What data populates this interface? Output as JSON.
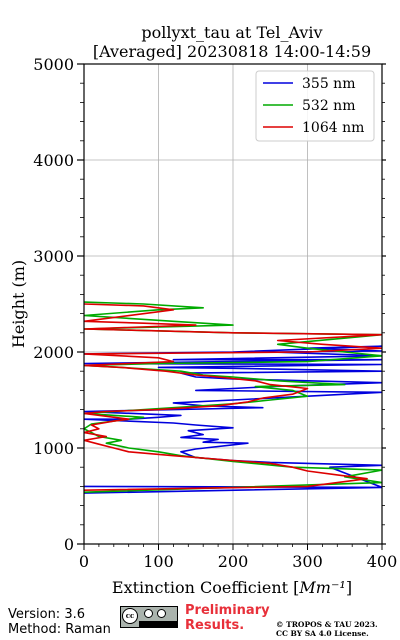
{
  "chart_data": {
    "type": "line",
    "title": "pollyxt_tau at Tel_Aviv",
    "subtitle": "[Averaged] 20230818 14:00-14:59",
    "xlabel": "Extinction Coefficient [Mm⁻¹]",
    "ylabel": "Height (m)",
    "xlim": [
      0,
      400
    ],
    "ylim": [
      0,
      5000
    ],
    "x_ticks": [
      "0",
      "100",
      "200",
      "300",
      "400"
    ],
    "y_ticks": [
      "0",
      "1000",
      "2000",
      "3000",
      "4000",
      "5000"
    ],
    "grid": true,
    "legend_position": "top-right",
    "series": [
      {
        "name": "355 nm",
        "color": "#0000dd",
        "points": [
          [
            0,
            530
          ],
          [
            400,
            590
          ],
          [
            0,
            600
          ],
          [
            400,
            590
          ],
          [
            330,
            800
          ],
          [
            400,
            820
          ],
          [
            250,
            850
          ],
          [
            200,
            870
          ],
          [
            150,
            900
          ],
          [
            130,
            960
          ],
          [
            150,
            990
          ],
          [
            220,
            1050
          ],
          [
            160,
            1060
          ],
          [
            180,
            1090
          ],
          [
            130,
            1110
          ],
          [
            160,
            1140
          ],
          [
            140,
            1180
          ],
          [
            200,
            1210
          ],
          [
            150,
            1240
          ],
          [
            120,
            1260
          ],
          [
            0,
            1300
          ],
          [
            60,
            1300
          ],
          [
            100,
            1320
          ],
          [
            130,
            1340
          ],
          [
            0,
            1380
          ],
          [
            240,
            1420
          ],
          [
            160,
            1440
          ],
          [
            120,
            1470
          ],
          [
            200,
            1500
          ],
          [
            300,
            1540
          ],
          [
            400,
            1580
          ],
          [
            150,
            1600
          ],
          [
            250,
            1640
          ],
          [
            400,
            1680
          ],
          [
            300,
            1700
          ],
          [
            200,
            1720
          ],
          [
            150,
            1740
          ],
          [
            130,
            1780
          ],
          [
            400,
            1800
          ],
          [
            200,
            1830
          ],
          [
            100,
            1840
          ],
          [
            400,
            1870
          ],
          [
            0,
            1880
          ],
          [
            200,
            1900
          ],
          [
            400,
            1920
          ],
          [
            120,
            1920
          ],
          [
            400,
            1960
          ],
          [
            250,
            2000
          ],
          [
            400,
            2010
          ],
          [
            300,
            2040
          ],
          [
            400,
            2060
          ],
          [
            200,
            2000
          ],
          [
            0,
            1980
          ]
        ]
      },
      {
        "name": "532 nm",
        "color": "#00aa00",
        "points": [
          [
            0,
            540
          ],
          [
            400,
            640
          ],
          [
            350,
            700
          ],
          [
            400,
            770
          ],
          [
            280,
            800
          ],
          [
            200,
            860
          ],
          [
            130,
            920
          ],
          [
            100,
            960
          ],
          [
            60,
            1000
          ],
          [
            30,
            1050
          ],
          [
            50,
            1080
          ],
          [
            20,
            1120
          ],
          [
            10,
            1160
          ],
          [
            0,
            1200
          ],
          [
            10,
            1250
          ],
          [
            40,
            1280
          ],
          [
            80,
            1320
          ],
          [
            0,
            1360
          ],
          [
            120,
            1420
          ],
          [
            200,
            1460
          ],
          [
            250,
            1500
          ],
          [
            300,
            1540
          ],
          [
            280,
            1600
          ],
          [
            230,
            1640
          ],
          [
            350,
            1660
          ],
          [
            260,
            1700
          ],
          [
            200,
            1740
          ],
          [
            160,
            1760
          ],
          [
            130,
            1800
          ],
          [
            50,
            1840
          ],
          [
            0,
            1860
          ],
          [
            100,
            1880
          ],
          [
            300,
            1900
          ],
          [
            400,
            1960
          ],
          [
            350,
            2000
          ],
          [
            300,
            2040
          ],
          [
            260,
            2080
          ],
          [
            400,
            2180
          ],
          [
            200,
            2200
          ],
          [
            0,
            2240
          ],
          [
            200,
            2280
          ],
          [
            120,
            2320
          ],
          [
            0,
            2380
          ],
          [
            100,
            2440
          ],
          [
            160,
            2460
          ],
          [
            80,
            2500
          ],
          [
            0,
            2520
          ]
        ]
      },
      {
        "name": "1064 nm",
        "color": "#dd0000",
        "points": [
          [
            0,
            560
          ],
          [
            300,
            600
          ],
          [
            380,
            680
          ],
          [
            340,
            720
          ],
          [
            300,
            760
          ],
          [
            280,
            800
          ],
          [
            250,
            840
          ],
          [
            200,
            870
          ],
          [
            120,
            920
          ],
          [
            60,
            960
          ],
          [
            40,
            1000
          ],
          [
            20,
            1040
          ],
          [
            0,
            1080
          ],
          [
            30,
            1120
          ],
          [
            0,
            1160
          ],
          [
            20,
            1200
          ],
          [
            10,
            1240
          ],
          [
            40,
            1280
          ],
          [
            60,
            1300
          ],
          [
            0,
            1360
          ],
          [
            30,
            1380
          ],
          [
            100,
            1400
          ],
          [
            180,
            1440
          ],
          [
            220,
            1480
          ],
          [
            240,
            1520
          ],
          [
            280,
            1560
          ],
          [
            300,
            1620
          ],
          [
            250,
            1660
          ],
          [
            230,
            1700
          ],
          [
            180,
            1740
          ],
          [
            150,
            1760
          ],
          [
            110,
            1800
          ],
          [
            50,
            1840
          ],
          [
            0,
            1860
          ],
          [
            60,
            1880
          ],
          [
            120,
            1900
          ],
          [
            100,
            1940
          ],
          [
            0,
            1980
          ],
          [
            300,
            2000
          ],
          [
            400,
            2040
          ],
          [
            320,
            2080
          ],
          [
            260,
            2120
          ],
          [
            400,
            2180
          ],
          [
            200,
            2200
          ],
          [
            0,
            2240
          ],
          [
            150,
            2280
          ],
          [
            80,
            2300
          ],
          [
            0,
            2320
          ],
          [
            120,
            2440
          ],
          [
            80,
            2480
          ],
          [
            0,
            2500
          ]
        ]
      }
    ]
  },
  "footer": {
    "version_label": "Version: 3.6",
    "method_label": "Method: Raman",
    "preliminary_line1": "Preliminary",
    "preliminary_line2": "Results.",
    "copyright_line1": "© TROPOS & TAU 2023.",
    "copyright_line2": "CC BY SA 4.0 License.",
    "license_badge": "cc-by-sa-badge"
  }
}
